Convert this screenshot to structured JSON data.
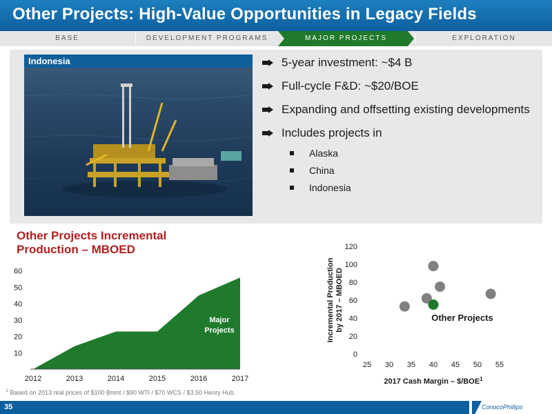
{
  "slide": {
    "title": "Other Projects: High-Value Opportunities in Legacy Fields",
    "page_number": "35"
  },
  "nav": {
    "items": [
      "BASE",
      "DEVELOPMENT PROGRAMS",
      "MAJOR PROJECTS",
      "EXPLORATION"
    ],
    "active": "MAJOR PROJECTS"
  },
  "photo": {
    "label": "Indonesia"
  },
  "bullets": [
    "5-year investment: ~$4 B",
    "Full-cycle F&D: ~$20/BOE",
    "Expanding and offsetting existing developments",
    "Includes projects in"
  ],
  "sub_bullets": [
    "Alaska",
    "China",
    "Indonesia"
  ],
  "colors": {
    "header": "#0e5f9e",
    "accent_green": "#1f7a2c",
    "title_red": "#b21e1e",
    "dot_gray": "#808080"
  },
  "chart_data": [
    {
      "type": "area",
      "title": "Other Projects Incremental Production – MBOED",
      "x": [
        "2012",
        "2013",
        "2014",
        "2015",
        "2016",
        "2017"
      ],
      "series": [
        {
          "name": "Major Projects",
          "values": [
            0,
            14,
            23,
            23,
            45,
            56
          ]
        }
      ],
      "yticks": [
        10,
        20,
        30,
        40,
        50,
        60
      ],
      "ylim": [
        0,
        62
      ],
      "grid": false
    },
    {
      "type": "scatter",
      "xlabel": "2017 Cash Margin – $/BOE",
      "xlabel_sup": "1",
      "ylabel": "Incremental Production by 2017 – MBOED",
      "xlim": [
        25,
        55
      ],
      "ylim": [
        0,
        120
      ],
      "xticks": [
        25,
        30,
        35,
        40,
        45,
        50,
        55
      ],
      "yticks": [
        0,
        20,
        40,
        60,
        80,
        100,
        120
      ],
      "points": [
        {
          "x": 33.5,
          "y": 53
        },
        {
          "x": 38.5,
          "y": 62
        },
        {
          "x": 40,
          "y": 98
        },
        {
          "x": 41.5,
          "y": 75
        },
        {
          "x": 53,
          "y": 67
        }
      ],
      "highlight": {
        "x": 40,
        "y": 55,
        "label": "Other Projects"
      }
    }
  ],
  "footnote": {
    "marker": "1",
    "text": "Based on 2013 real prices of $100 Brent / $90 WTI / $70 WCS / $3.50 Henry Hub."
  },
  "footer": {
    "logo": "ConocoPhillips"
  }
}
